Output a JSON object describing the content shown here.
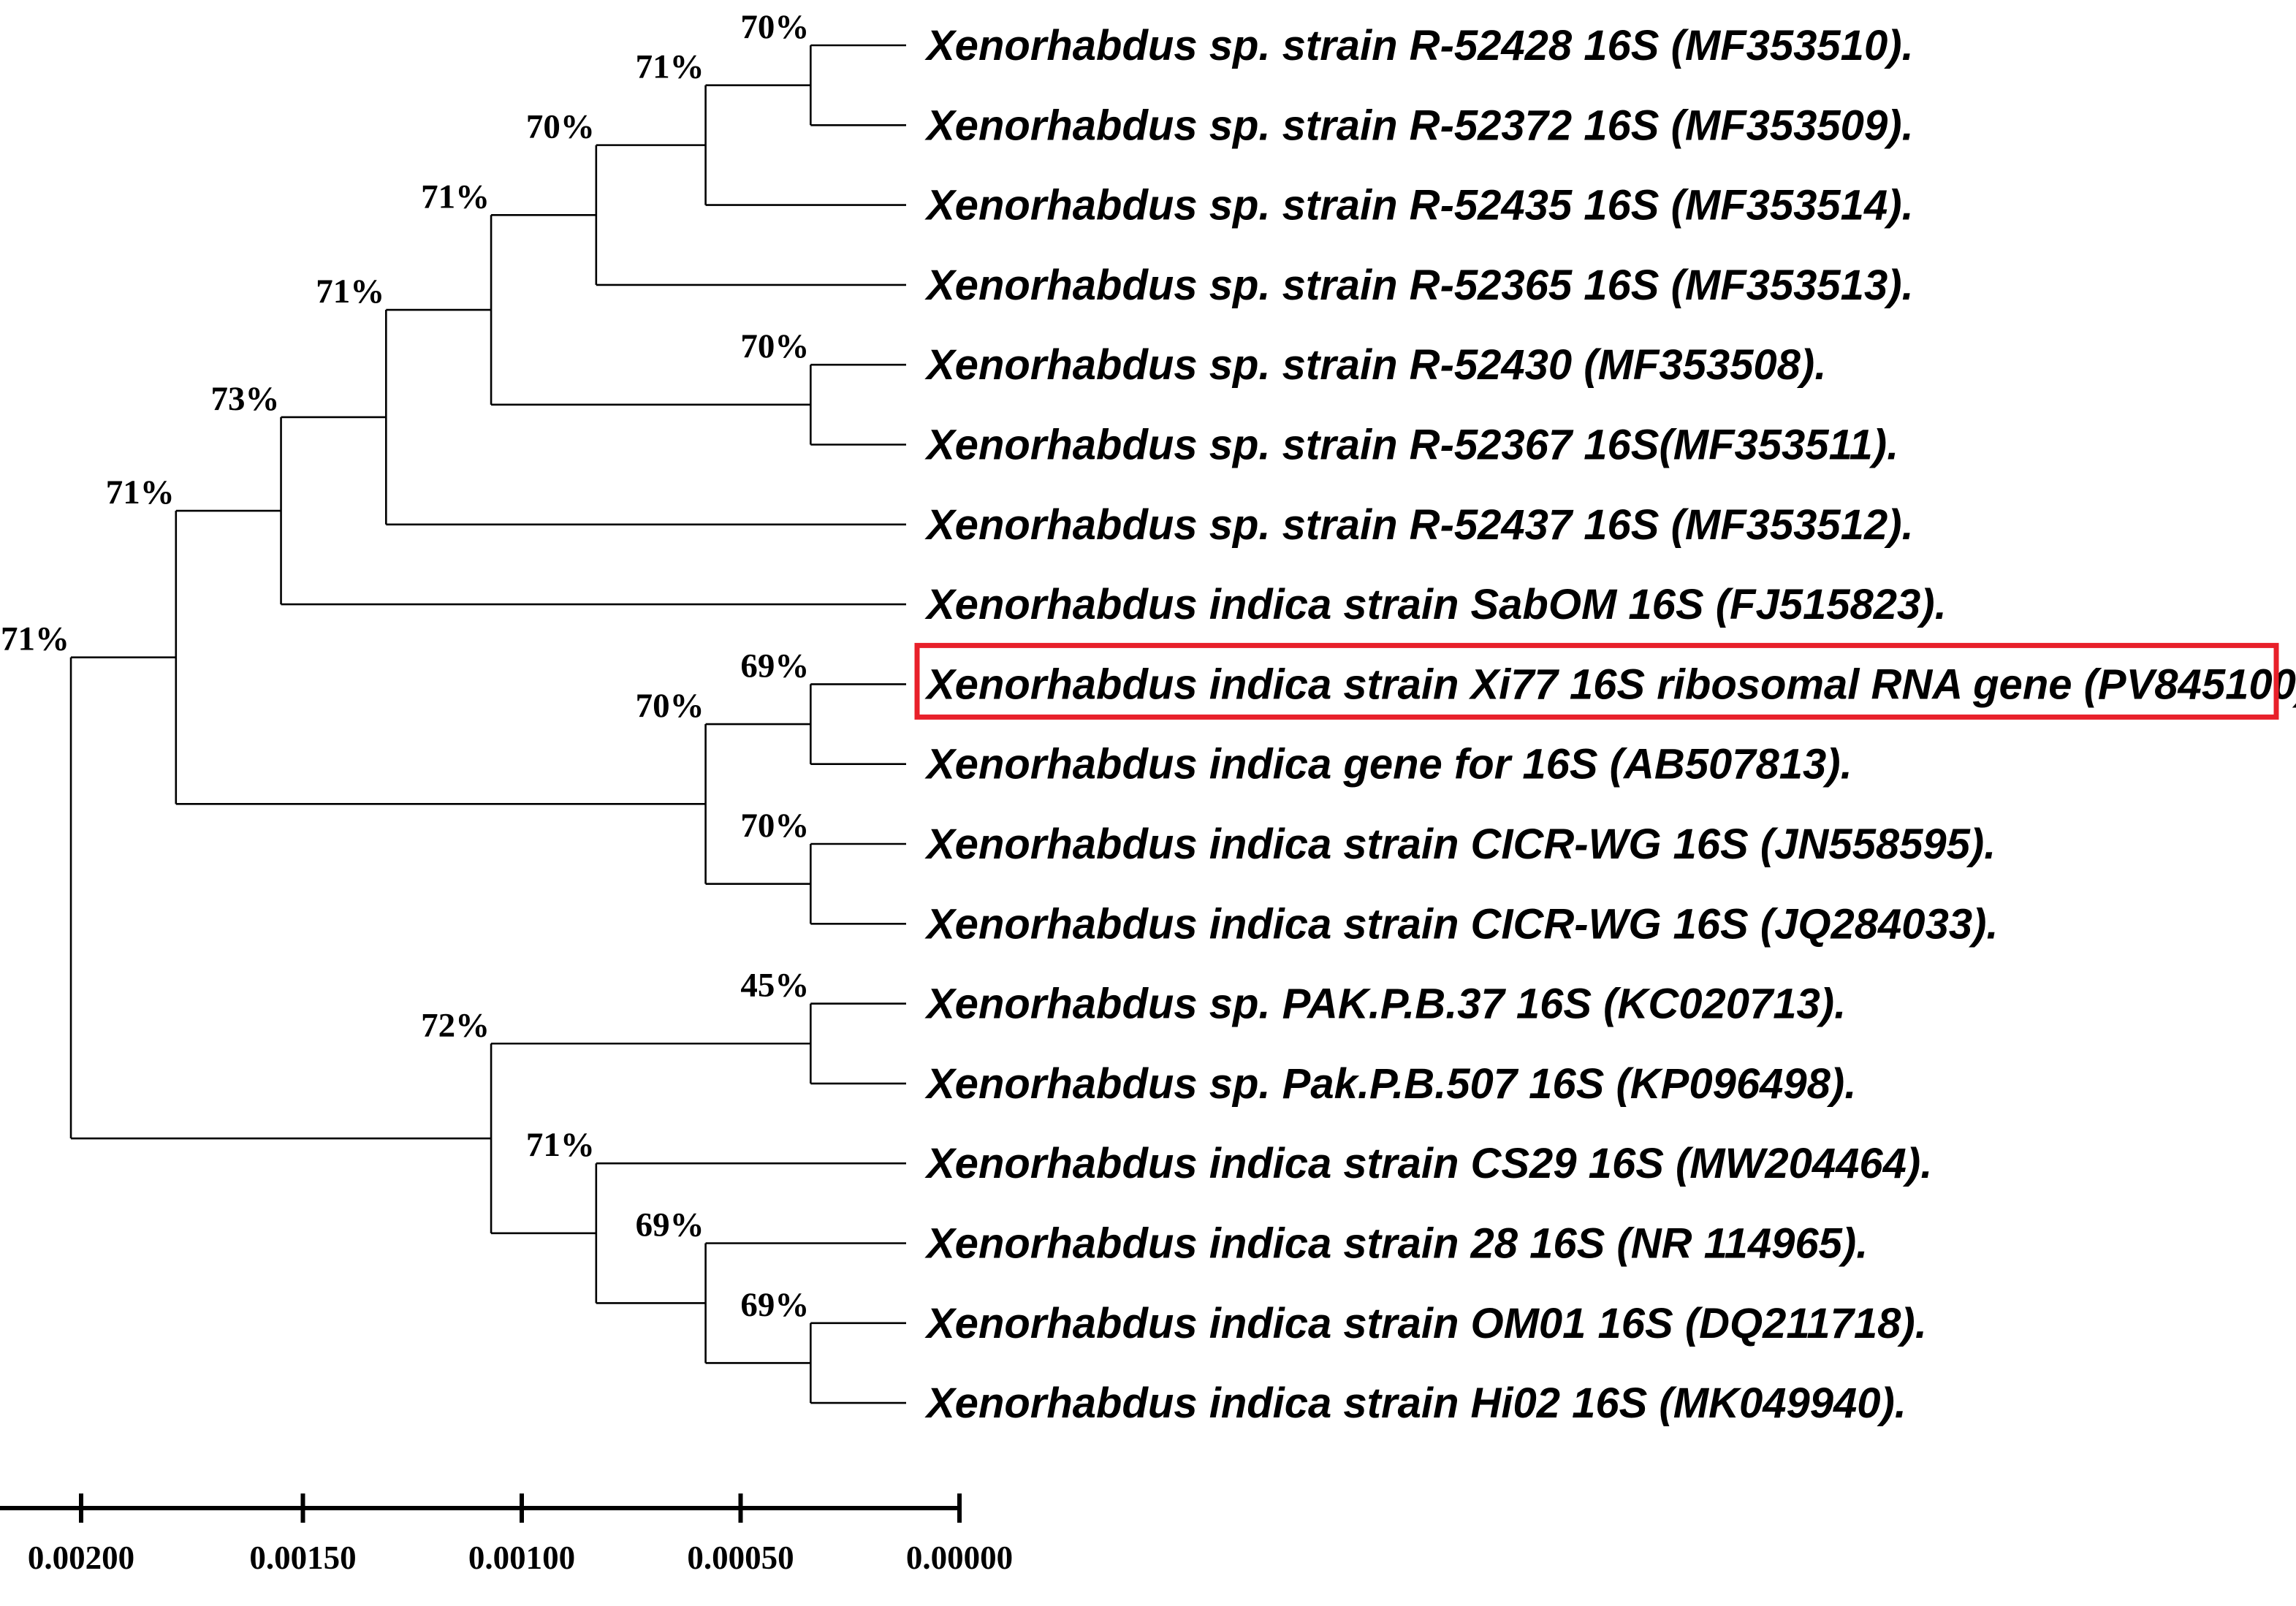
{
  "tree": {
    "taxa": [
      "Xenorhabdus sp. strain R-52428 16S (MF353510).",
      "Xenorhabdus sp. strain R-52372 16S (MF353509).",
      "Xenorhabdus sp. strain R-52435 16S (MF353514).",
      "Xenorhabdus sp. strain R-52365 16S (MF353513).",
      "Xenorhabdus sp. strain R-52430 (MF353508).",
      "Xenorhabdus sp. strain R-52367 16S(MF353511).",
      "Xenorhabdus sp. strain R-52437 16S (MF353512).",
      "Xenorhabdus indica strain SabOM 16S (FJ515823).",
      "Xenorhabdus indica strain Xi77 16S ribosomal RNA gene (PV845100)",
      "Xenorhabdus indica gene for 16S (AB507813).",
      "Xenorhabdus indica strain CICR-WG 16S (JN558595).",
      "Xenorhabdus indica strain CICR-WG 16S (JQ284033).",
      "Xenorhabdus sp. PAK.P.B.37 16S (KC020713).",
      "Xenorhabdus sp. Pak.P.B.507 16S (KP096498).",
      "Xenorhabdus indica strain CS29 16S (MW204464).",
      "Xenorhabdus indica strain 28 16S (NR 114965).",
      "Xenorhabdus indica strain OM01 16S (DQ211718).",
      "Xenorhabdus indica strain Hi02 16S (MK049940)."
    ],
    "highlighted_taxon": 8,
    "highlight_color": "#e8202a",
    "line_color": "#000000",
    "nodes": [
      {
        "id": "n1",
        "depth": 0.00034,
        "children": [
          "t0",
          "t1"
        ],
        "support": "70%"
      },
      {
        "id": "n2",
        "depth": 0.00058,
        "children": [
          "n1",
          "t2"
        ],
        "support": "71%"
      },
      {
        "id": "n3",
        "depth": 0.00083,
        "children": [
          "n2",
          "t3"
        ],
        "support": "70%"
      },
      {
        "id": "n4",
        "depth": 0.00034,
        "children": [
          "t4",
          "t5"
        ],
        "support": "70%"
      },
      {
        "id": "n5",
        "depth": 0.00107,
        "children": [
          "n3",
          "n4"
        ],
        "support": "71%"
      },
      {
        "id": "n6",
        "depth": 0.00131,
        "children": [
          "n5",
          "t6"
        ],
        "support": "71%"
      },
      {
        "id": "n7",
        "depth": 0.00155,
        "children": [
          "n6",
          "t7"
        ],
        "support": "73%"
      },
      {
        "id": "n8",
        "depth": 0.00034,
        "children": [
          "t8",
          "t9"
        ],
        "support": "69%"
      },
      {
        "id": "n9",
        "depth": 0.00034,
        "children": [
          "t10",
          "t11"
        ],
        "support": "70%"
      },
      {
        "id": "n10",
        "depth": 0.00058,
        "children": [
          "n8",
          "n9"
        ],
        "support": "70%"
      },
      {
        "id": "n11",
        "depth": 0.00179,
        "children": [
          "n7",
          "n10"
        ],
        "support": "71%"
      },
      {
        "id": "n12",
        "depth": 0.00034,
        "children": [
          "t12",
          "t13"
        ],
        "support": "45%"
      },
      {
        "id": "n13",
        "depth": 0.00034,
        "children": [
          "t16",
          "t17"
        ],
        "support": "69%"
      },
      {
        "id": "n14",
        "depth": 0.00058,
        "children": [
          "t15",
          "n13"
        ],
        "support": "69%"
      },
      {
        "id": "n15",
        "depth": 0.00083,
        "children": [
          "t14",
          "n14"
        ],
        "support": "71%"
      },
      {
        "id": "n16",
        "depth": 0.00107,
        "children": [
          "n12",
          "n15"
        ],
        "support": "72%"
      },
      {
        "id": "n17",
        "depth": 0.00203,
        "children": [
          "n11",
          "n16"
        ],
        "support": "71%"
      }
    ],
    "leaf_depth": 0.0
  },
  "scale": {
    "ticks": [
      {
        "value": 0.002,
        "label": "0.00200"
      },
      {
        "value": 0.0015,
        "label": "0.00150"
      },
      {
        "value": 0.001,
        "label": "0.00100"
      },
      {
        "value": 0.0005,
        "label": "0.00050"
      },
      {
        "value": 0.0,
        "label": "0.00000"
      }
    ],
    "range": [
      0.00213,
      0.0
    ]
  }
}
